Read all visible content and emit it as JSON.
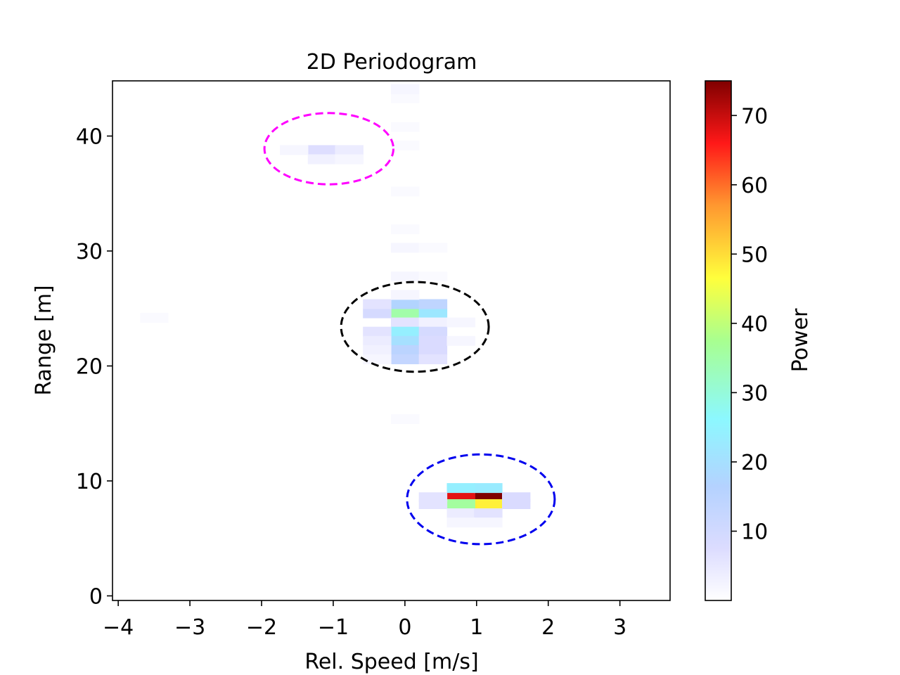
{
  "chart_data": {
    "type": "heatmap",
    "title": "2D Periodogram",
    "xlabel": "Rel. Speed [m/s]",
    "ylabel": "Range [m]",
    "xlim": [
      -4.08,
      3.7
    ],
    "ylim": [
      -0.4,
      44.8
    ],
    "xticks": [
      -4,
      -3,
      -2,
      -1,
      0,
      1,
      2,
      3
    ],
    "xtick_labels": [
      "−4",
      "−3",
      "−2",
      "−1",
      "0",
      "1",
      "2",
      "3"
    ],
    "yticks": [
      0,
      10,
      20,
      30,
      40
    ],
    "ytick_labels": [
      "0",
      "10",
      "20",
      "30",
      "40"
    ],
    "grid": false,
    "colormap": "jet-alpha",
    "colorbar": {
      "label": "Power",
      "range": [
        0,
        75
      ],
      "ticks": [
        10,
        20,
        30,
        40,
        50,
        60,
        70
      ],
      "tick_labels": [
        "10",
        "20",
        "30",
        "40",
        "50",
        "60",
        "70"
      ]
    },
    "cell_size": {
      "speed": 0.39,
      "range": 0.82
    },
    "cells": [
      {
        "v": 1.16,
        "r": 8.6,
        "p": 75
      },
      {
        "v": 0.78,
        "r": 8.6,
        "p": 68
      },
      {
        "v": 1.16,
        "r": 8.0,
        "p": 48
      },
      {
        "v": 0.78,
        "r": 8.0,
        "p": 36
      },
      {
        "v": 1.16,
        "r": 9.4,
        "p": 23
      },
      {
        "v": 0.78,
        "r": 9.4,
        "p": 24
      },
      {
        "v": 1.55,
        "r": 8.6,
        "p": 8
      },
      {
        "v": 1.55,
        "r": 8.0,
        "p": 8
      },
      {
        "v": 0.39,
        "r": 8.6,
        "p": 6
      },
      {
        "v": 0.39,
        "r": 8.0,
        "p": 6
      },
      {
        "v": 0.78,
        "r": 7.2,
        "p": 4
      },
      {
        "v": 1.16,
        "r": 7.2,
        "p": 6
      },
      {
        "v": 0.78,
        "r": 6.4,
        "p": 2
      },
      {
        "v": 1.16,
        "r": 6.4,
        "p": 2
      },
      {
        "v": 0.0,
        "r": 24.6,
        "p": 35
      },
      {
        "v": 0.39,
        "r": 24.6,
        "p": 22
      },
      {
        "v": 0.0,
        "r": 25.4,
        "p": 17
      },
      {
        "v": 0.39,
        "r": 25.4,
        "p": 14
      },
      {
        "v": -0.39,
        "r": 24.6,
        "p": 9
      },
      {
        "v": -0.39,
        "r": 25.4,
        "p": 6
      },
      {
        "v": 0.0,
        "r": 23.8,
        "p": 6
      },
      {
        "v": 0.39,
        "r": 23.8,
        "p": 3
      },
      {
        "v": 0.0,
        "r": 23.0,
        "p": 24
      },
      {
        "v": 0.39,
        "r": 23.0,
        "p": 9
      },
      {
        "v": -0.39,
        "r": 23.0,
        "p": 6
      },
      {
        "v": 0.0,
        "r": 22.2,
        "p": 20
      },
      {
        "v": 0.39,
        "r": 22.2,
        "p": 8
      },
      {
        "v": -0.39,
        "r": 22.2,
        "p": 4
      },
      {
        "v": 0.0,
        "r": 21.4,
        "p": 15
      },
      {
        "v": 0.39,
        "r": 21.4,
        "p": 8
      },
      {
        "v": -0.39,
        "r": 21.4,
        "p": 3
      },
      {
        "v": 0.0,
        "r": 20.6,
        "p": 13
      },
      {
        "v": 0.39,
        "r": 20.6,
        "p": 6
      },
      {
        "v": -0.39,
        "r": 20.6,
        "p": 2
      },
      {
        "v": 0.78,
        "r": 23.8,
        "p": 2
      },
      {
        "v": 0.78,
        "r": 22.2,
        "p": 2
      },
      {
        "v": 0.0,
        "r": 26.2,
        "p": 2
      },
      {
        "v": 0.0,
        "r": 27.8,
        "p": 2
      },
      {
        "v": 0.39,
        "r": 27.8,
        "p": 1
      },
      {
        "v": 0.0,
        "r": 30.3,
        "p": 2
      },
      {
        "v": 0.39,
        "r": 30.3,
        "p": 1
      },
      {
        "v": 0.0,
        "r": 31.9,
        "p": 1
      },
      {
        "v": 0.0,
        "r": 35.2,
        "p": 1
      },
      {
        "v": 0.0,
        "r": 39.2,
        "p": 1
      },
      {
        "v": 0.0,
        "r": 40.8,
        "p": 1
      },
      {
        "v": 0.0,
        "r": 43.3,
        "p": 1
      },
      {
        "v": 0.0,
        "r": 44.1,
        "p": 2
      },
      {
        "v": -1.16,
        "r": 38.8,
        "p": 7
      },
      {
        "v": -0.78,
        "r": 38.8,
        "p": 4
      },
      {
        "v": -1.16,
        "r": 38.0,
        "p": 3
      },
      {
        "v": -0.78,
        "r": 38.0,
        "p": 2
      },
      {
        "v": -1.55,
        "r": 38.8,
        "p": 2
      },
      {
        "v": -3.5,
        "r": 24.2,
        "p": 1
      },
      {
        "v": 0.0,
        "r": 15.4,
        "p": 1
      }
    ],
    "annotations": [
      {
        "type": "ellipse",
        "cx": -1.06,
        "cy": 38.9,
        "rx": 0.9,
        "ry": 3.1,
        "color": "#ff00ff",
        "style": "dashed"
      },
      {
        "type": "ellipse",
        "cx": 0.14,
        "cy": 23.4,
        "rx": 1.03,
        "ry": 3.9,
        "color": "#000000",
        "style": "dashed"
      },
      {
        "type": "ellipse",
        "cx": 1.06,
        "cy": 8.4,
        "rx": 1.03,
        "ry": 3.9,
        "color": "#0000ee",
        "style": "dashed"
      }
    ]
  }
}
